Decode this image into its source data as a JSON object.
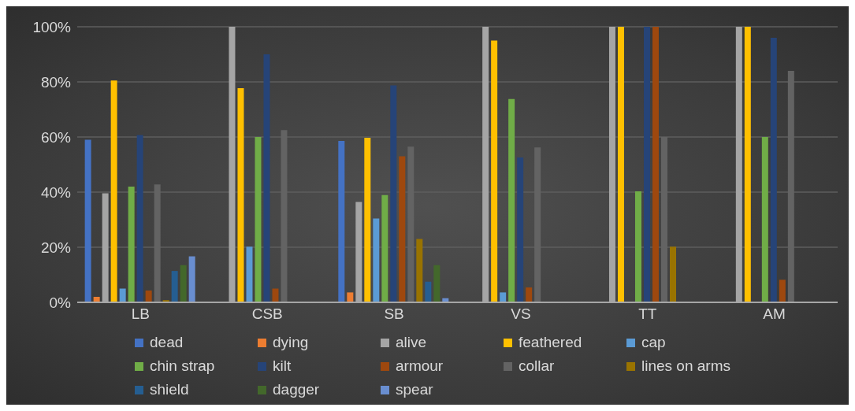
{
  "chart_data": {
    "type": "bar",
    "categories": [
      "LB",
      "CSB",
      "SB",
      "VS",
      "TT",
      "AM"
    ],
    "series": [
      {
        "name": "dead",
        "color": "#4472c4",
        "values": [
          59,
          0,
          58.6,
          0,
          0,
          0
        ]
      },
      {
        "name": "dying",
        "color": "#ed7d31",
        "values": [
          2,
          0,
          3.6,
          0,
          0,
          0
        ]
      },
      {
        "name": "alive",
        "color": "#a5a5a5",
        "values": [
          39.6,
          100,
          36.4,
          100,
          100,
          100
        ]
      },
      {
        "name": "feathered",
        "color": "#ffc000",
        "values": [
          80.5,
          77.7,
          59.7,
          95,
          100,
          100
        ]
      },
      {
        "name": "cap",
        "color": "#5b9bd5",
        "values": [
          5,
          20.2,
          30.4,
          3.6,
          0,
          0
        ]
      },
      {
        "name": "chin strap",
        "color": "#70ad47",
        "values": [
          42,
          60,
          38.9,
          73.8,
          40.3,
          60
        ]
      },
      {
        "name": "kilt",
        "color": "#264478",
        "values": [
          60.7,
          90,
          78.7,
          52.6,
          100,
          96
        ]
      },
      {
        "name": "armour",
        "color": "#9e480e",
        "values": [
          4.3,
          5,
          53,
          5.4,
          100,
          8.2
        ]
      },
      {
        "name": "collar",
        "color": "#636363",
        "values": [
          42.8,
          62.5,
          56.5,
          56.2,
          60,
          84
        ]
      },
      {
        "name": "lines on arms",
        "color": "#997300",
        "values": [
          0.8,
          0,
          23,
          0,
          20.2,
          0
        ]
      },
      {
        "name": "shield",
        "color": "#255e91",
        "values": [
          11.4,
          0,
          7.5,
          0,
          0,
          0
        ]
      },
      {
        "name": "dagger",
        "color": "#43682b",
        "values": [
          13.5,
          0,
          13.5,
          0,
          0,
          0
        ]
      },
      {
        "name": "spear",
        "color": "#698ed0",
        "values": [
          16.7,
          0,
          1.5,
          0,
          0,
          0
        ]
      }
    ],
    "ylim": [
      0,
      100
    ],
    "yticks": [
      {
        "value": 0,
        "label": "0%"
      },
      {
        "value": 20,
        "label": "20%"
      },
      {
        "value": 40,
        "label": "40%"
      },
      {
        "value": 60,
        "label": "60%"
      },
      {
        "value": 80,
        "label": "80%"
      },
      {
        "value": 100,
        "label": "100%"
      }
    ],
    "grid": "y",
    "legend": "bottom"
  }
}
